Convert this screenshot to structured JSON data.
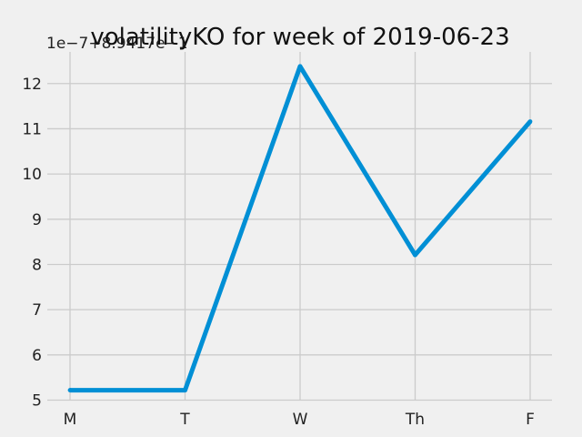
{
  "chart_data": {
    "type": "line",
    "title": "volatilityKO for week of 2019-06-23",
    "axis_offset_label": "1e−7+8.9417e−1",
    "categories": [
      "M",
      "T",
      "W",
      "Th",
      "F"
    ],
    "series": [
      {
        "values": [
          5.22,
          5.22,
          12.38,
          8.21,
          11.16
        ]
      }
    ],
    "y_ticks": [
      "5",
      "6",
      "7",
      "8",
      "9",
      "10",
      "11",
      "12"
    ],
    "ylim": [
      4.99,
      12.7
    ],
    "grid": true,
    "xlabel": "",
    "ylabel": ""
  },
  "colors": {
    "background": "#f0f0f0",
    "grid": "#cbcbcb",
    "line": "#008fd5"
  }
}
